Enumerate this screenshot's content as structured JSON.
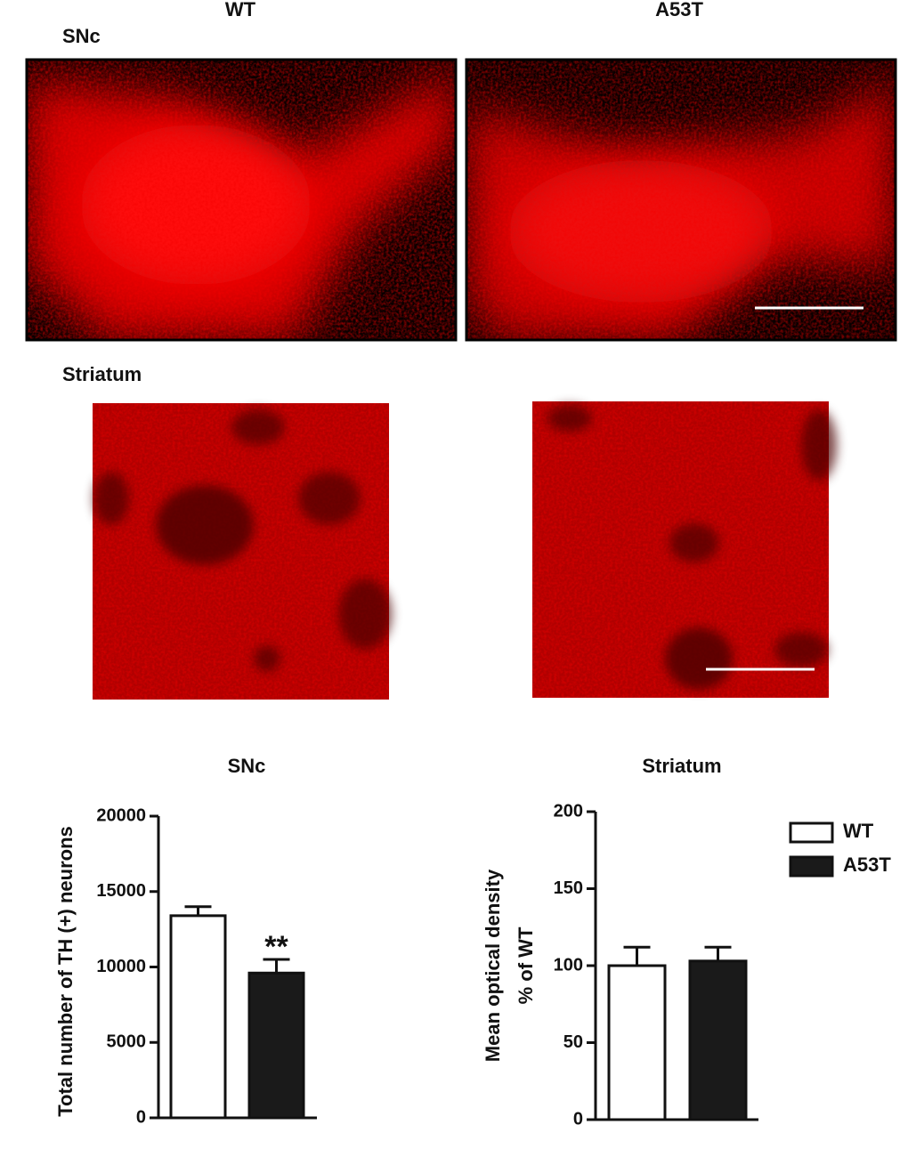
{
  "panels": {
    "col_left": "WT",
    "col_right": "A53T",
    "row_top": "SNc",
    "row_bottom": "Striatum"
  },
  "chart_data": [
    {
      "type": "bar",
      "title": "SNc",
      "ylabel": "Total number of TH (+) neurons",
      "categories": [
        null
      ],
      "series": [
        {
          "color": "#ffffff",
          "values": [
            13400
          ],
          "errors": [
            600
          ]
        },
        {
          "color": "#1a1a1a",
          "values": [
            9600
          ],
          "errors": [
            900
          ]
        }
      ],
      "annotation": "**",
      "ylim": [
        0,
        20000
      ],
      "yticks": [
        0,
        5000,
        10000,
        15000,
        20000
      ]
    },
    {
      "type": "bar",
      "title": "Striatum",
      "ylabel": [
        "Mean optical density",
        "% of WT"
      ],
      "categories": [
        null
      ],
      "series": [
        {
          "name": "WT",
          "color": "#ffffff",
          "values": [
            100
          ],
          "errors": [
            12
          ]
        },
        {
          "name": "A53T",
          "color": "#1a1a1a",
          "values": [
            103
          ],
          "errors": [
            9
          ]
        }
      ],
      "legend": "right",
      "ylim": [
        0,
        200
      ],
      "yticks": [
        0,
        50,
        100,
        150,
        200
      ]
    }
  ]
}
